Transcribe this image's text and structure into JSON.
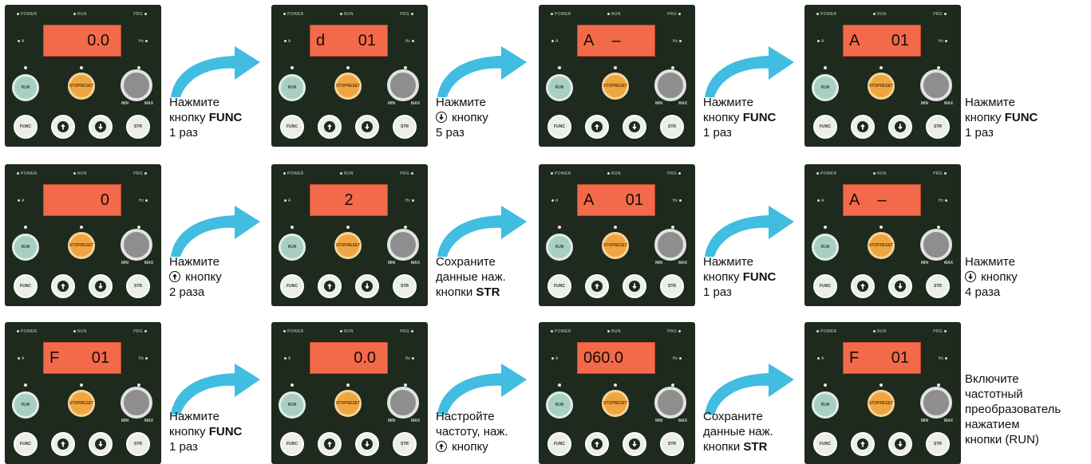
{
  "panel_labels": {
    "power": "POWER",
    "run": "RUN",
    "prg": "PRG",
    "a": "A",
    "hz": "Hz",
    "run_btn": "RUN",
    "stop_btn": "STOP",
    "reset_btn": "RESET",
    "min": "MIN",
    "max": "MAX",
    "func_btn": "FUNC",
    "str_btn": "STR"
  },
  "steps": [
    {
      "display_left": "",
      "display_right": "0.0",
      "display_center": "",
      "caption": [
        {
          "t": "Нажмите"
        },
        {
          "t": "кнопку ",
          "b": "FUNC"
        },
        {
          "t": "1 раз"
        }
      ]
    },
    {
      "display_left": "d",
      "display_right": "01",
      "display_center": "",
      "caption": [
        {
          "t": "Нажмите"
        },
        {
          "t": " кнопку",
          "icon": "down"
        },
        {
          "t": "5 раз"
        }
      ]
    },
    {
      "display_left": "A",
      "display_right": "",
      "display_center": "–",
      "caption": [
        {
          "t": "Нажмите"
        },
        {
          "t": "кнопку ",
          "b": "FUNC"
        },
        {
          "t": "1 раз"
        }
      ]
    },
    {
      "display_left": "A",
      "display_right": "01",
      "display_center": "",
      "caption": [
        {
          "t": "Нажмите"
        },
        {
          "t": "кнопку ",
          "b": "FUNC"
        },
        {
          "t": "1 раз"
        }
      ]
    },
    {
      "display_left": "",
      "display_right": "0",
      "display_center": "",
      "caption": [
        {
          "t": "Нажмите"
        },
        {
          "t": " кнопку",
          "icon": "up"
        },
        {
          "t": "2 раза"
        }
      ]
    },
    {
      "display_left": "",
      "display_right": "",
      "display_center": "2",
      "caption": [
        {
          "t": "Сохраните"
        },
        {
          "t": "данные наж."
        },
        {
          "t": "кнопки ",
          "b": "STR"
        }
      ]
    },
    {
      "display_left": "A",
      "display_right": "01",
      "display_center": "",
      "caption": [
        {
          "t": "Нажмите"
        },
        {
          "t": "кнопку ",
          "b": "FUNC"
        },
        {
          "t": "1 раз"
        }
      ]
    },
    {
      "display_left": "A",
      "display_right": "",
      "display_center": "–",
      "caption": [
        {
          "t": "Нажмите"
        },
        {
          "t": " кнопку",
          "icon": "down"
        },
        {
          "t": "4 раза"
        }
      ]
    },
    {
      "display_left": "F",
      "display_right": "01",
      "display_center": "",
      "caption": [
        {
          "t": "Нажмите"
        },
        {
          "t": "кнопку ",
          "b": "FUNC"
        },
        {
          "t": "1 раз"
        }
      ]
    },
    {
      "display_left": "",
      "display_right": "0.0",
      "display_center": "",
      "caption": [
        {
          "t": "Настройте"
        },
        {
          "t": "частоту, наж."
        },
        {
          "t": " кнопку",
          "icon": "up"
        }
      ]
    },
    {
      "display_left": "060.0",
      "display_right": "",
      "display_center": "",
      "caption": [
        {
          "t": "Сохраните"
        },
        {
          "t": "данные наж."
        },
        {
          "t": "кнопки ",
          "b": "STR"
        }
      ]
    },
    {
      "display_left": "F",
      "display_right": "01",
      "display_center": "",
      "caption": [
        {
          "t": "Включите"
        },
        {
          "t": "частотный"
        },
        {
          "t": "преобразователь"
        },
        {
          "t": "нажатием"
        },
        {
          "t": "кнопки (RUN)"
        }
      ]
    }
  ],
  "colors": {
    "panel_bg": "#1d2a1d",
    "display_bg": "#f26a4a",
    "arrow": "#40bde0",
    "stop_btn": "#f0a640",
    "run_btn": "#a9cfc2",
    "knob": "#8e8e8e"
  }
}
